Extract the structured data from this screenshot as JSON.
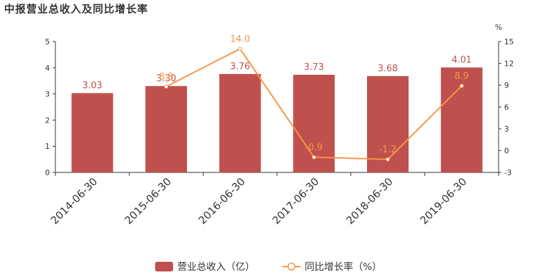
{
  "chart_data": {
    "title": "中报营业总收入及同比增长率",
    "type": "bar",
    "categories": [
      "2014-06-30",
      "2015-06-30",
      "2016-06-30",
      "2017-06-30",
      "2018-06-30",
      "2019-06-30"
    ],
    "series": [
      {
        "name": "营业总收入（亿）",
        "type": "bar",
        "axis": "left",
        "color": "#c0504d",
        "values": [
          3.03,
          3.3,
          3.76,
          3.73,
          3.68,
          4.01
        ],
        "labels": [
          "3.03",
          "3.30",
          "3.76",
          "3.73",
          "3.68",
          "4.01"
        ]
      },
      {
        "name": "同比增长率（%）",
        "type": "line",
        "axis": "right",
        "color": "#f79646",
        "values": [
          null,
          8.8,
          14.0,
          -0.9,
          -1.2,
          8.9
        ],
        "labels": [
          "",
          "8.8",
          "14.0",
          "-0.9",
          "-1.2",
          "8.9"
        ]
      }
    ],
    "y_left": {
      "ylim": [
        0,
        5
      ],
      "ticks": [
        "0",
        "1",
        "2",
        "3",
        "4",
        "5"
      ]
    },
    "y_right": {
      "unit": "%",
      "ylim": [
        -3,
        15
      ],
      "ticks": [
        "-3",
        "0",
        "3",
        "6",
        "9",
        "12",
        "15"
      ]
    },
    "legend_position": "bottom-center",
    "grid": false
  }
}
